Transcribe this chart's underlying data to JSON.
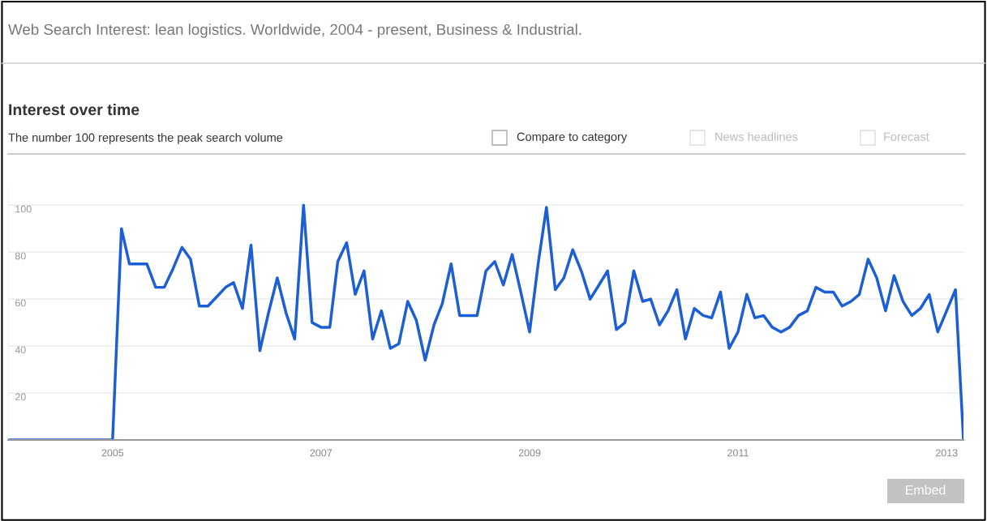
{
  "chart_data": {
    "type": "line",
    "title": "Interest over time",
    "subtitle": "The number 100 represents the peak search volume",
    "annotations": [
      "Web Search Interest: lean logistics. Worldwide, 2004 - present, Business & Industrial.",
      "Compare to category",
      "News headlines",
      "Forecast",
      "Embed"
    ],
    "x": [
      "2004-01",
      "2004-02",
      "2004-03",
      "2004-04",
      "2004-05",
      "2004-06",
      "2004-07",
      "2004-08",
      "2004-09",
      "2004-10",
      "2004-11",
      "2004-12",
      "2005-01",
      "2005-02",
      "2005-03",
      "2005-04",
      "2005-05",
      "2005-06",
      "2005-07",
      "2005-08",
      "2005-09",
      "2005-10",
      "2005-11",
      "2005-12",
      "2006-01",
      "2006-02",
      "2006-03",
      "2006-04",
      "2006-05",
      "2006-06",
      "2006-07",
      "2006-08",
      "2006-09",
      "2006-10",
      "2006-11",
      "2006-12",
      "2007-01",
      "2007-02",
      "2007-03",
      "2007-04",
      "2007-05",
      "2007-06",
      "2007-07",
      "2007-08",
      "2007-09",
      "2007-10",
      "2007-11",
      "2007-12",
      "2008-01",
      "2008-02",
      "2008-03",
      "2008-04",
      "2008-05",
      "2008-06",
      "2008-07",
      "2008-08",
      "2008-09",
      "2008-10",
      "2008-11",
      "2008-12",
      "2009-01",
      "2009-02",
      "2009-03",
      "2009-04",
      "2009-05",
      "2009-06",
      "2009-07",
      "2009-08",
      "2009-09",
      "2009-10",
      "2009-11",
      "2009-12",
      "2010-01",
      "2010-02",
      "2010-03",
      "2010-04",
      "2010-05",
      "2010-06",
      "2010-07",
      "2010-08",
      "2010-09",
      "2010-10",
      "2010-11",
      "2010-12",
      "2011-01",
      "2011-02",
      "2011-03",
      "2011-04",
      "2011-05",
      "2011-06",
      "2011-07",
      "2011-08",
      "2011-09",
      "2011-10",
      "2011-11",
      "2011-12",
      "2012-01",
      "2012-02",
      "2012-03",
      "2012-04",
      "2012-05",
      "2012-06",
      "2012-07",
      "2012-08",
      "2012-09",
      "2012-10",
      "2012-11",
      "2012-12",
      "2013-01",
      "2013-02",
      "2013-03"
    ],
    "series": [
      {
        "color": "#1c5fd4",
        "values": [
          0,
          0,
          0,
          0,
          0,
          0,
          0,
          0,
          0,
          0,
          0,
          0,
          0,
          90,
          75,
          75,
          75,
          65,
          65,
          73,
          82,
          77,
          57,
          57,
          61,
          65,
          67,
          56,
          83,
          38,
          54,
          69,
          54,
          43,
          100,
          50,
          48,
          48,
          76,
          84,
          62,
          72,
          43,
          55,
          39,
          41,
          59,
          51,
          34,
          49,
          58,
          75,
          53,
          53,
          53,
          72,
          76,
          66,
          79,
          63,
          46,
          76,
          99,
          64,
          69,
          81,
          72,
          60,
          66,
          72,
          47,
          50,
          72,
          59,
          60,
          49,
          55,
          64,
          43,
          56,
          53,
          52,
          63,
          39,
          46,
          62,
          52,
          53,
          48,
          46,
          48,
          53,
          55,
          65,
          63,
          63,
          57,
          59,
          62,
          77,
          69,
          55,
          70,
          59,
          53,
          56,
          62,
          46,
          55,
          64,
          0
        ]
      }
    ],
    "xlim": [
      "2004-01",
      "2013-03"
    ],
    "xticks": [
      "2005",
      "2007",
      "2009",
      "2011",
      "2013"
    ],
    "ylim": [
      0,
      108
    ],
    "yticks": [
      20,
      40,
      60,
      80,
      100
    ],
    "grid": "y",
    "marker": "none",
    "line_style": "solid"
  }
}
